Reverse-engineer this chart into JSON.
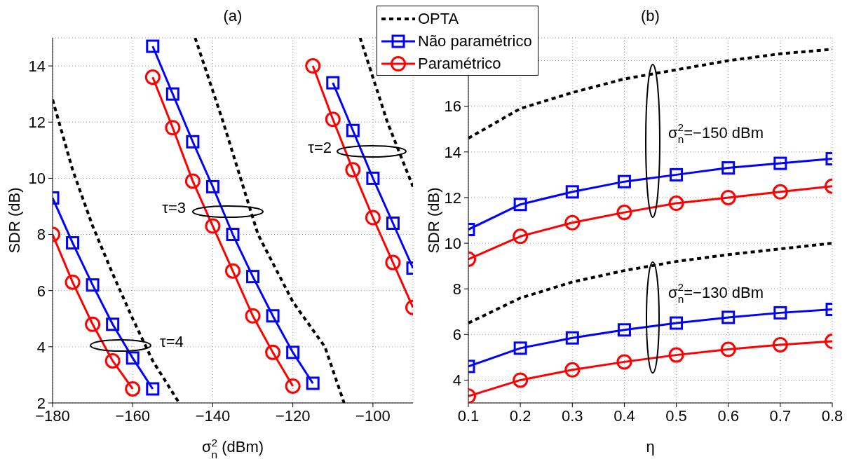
{
  "chart_data": [
    {
      "type": "line",
      "title": "(a)",
      "xlabel": "σ$^{2}$$_{n}$ (dBm)",
      "ylabel": "SDR (dB)",
      "xlim": [
        -180,
        -90
      ],
      "xticks": [
        -180,
        -160,
        -140,
        -120,
        -100
      ],
      "ylim": [
        2,
        15
      ],
      "yticks": [
        2,
        4,
        6,
        8,
        10,
        12,
        14
      ],
      "grid": true,
      "legend": "top right",
      "series": [
        {
          "name": "OPTA",
          "color": "#000000",
          "line_style": "dashed",
          "marker": "none",
          "x": [
            -180,
            -175,
            -170,
            -165,
            -160,
            -155,
            -148.4
          ],
          "values": [
            12.8,
            10.3,
            8.3,
            6.6,
            5.0,
            3.5,
            2
          ]
        },
        {
          "name": "Não paramétrico",
          "color": "#0000ff",
          "line_style": "solid",
          "marker": "square",
          "x": [
            -180,
            -175,
            -170,
            -165,
            -160,
            -155
          ],
          "values": [
            9.3,
            7.7,
            6.2,
            4.8,
            3.6,
            2.5
          ]
        },
        {
          "name": "Paramétrico",
          "color": "#ff0000",
          "line_style": "solid",
          "marker": "circle",
          "x": [
            -180,
            -175,
            -170,
            -165,
            -160
          ],
          "values": [
            8.0,
            6.3,
            4.8,
            3.5,
            2.5
          ]
        },
        {
          "color": "#000000",
          "line_style": "dashed",
          "marker": "none",
          "x": [
            -144.4,
            -137.4,
            -128.7,
            -120,
            -112,
            -107.2
          ],
          "values": [
            15,
            12,
            8,
            5.6,
            4,
            2
          ]
        },
        {
          "color": "#0000ff",
          "line_style": "solid",
          "marker": "square",
          "x": [
            -155,
            -150,
            -145,
            -140,
            -135,
            -130,
            -125,
            -120,
            -115
          ],
          "values": [
            14.7,
            13.0,
            11.3,
            9.7,
            8.0,
            6.5,
            5.1,
            3.8,
            2.7
          ]
        },
        {
          "color": "#ff0000",
          "line_style": "solid",
          "marker": "circle",
          "x": [
            -155,
            -150,
            -145,
            -140,
            -135,
            -130,
            -125,
            -120
          ],
          "values": [
            13.6,
            11.8,
            9.9,
            8.3,
            6.7,
            5.1,
            3.8,
            2.6
          ]
        },
        {
          "color": "#000000",
          "line_style": "dashed",
          "marker": "none",
          "x": [
            -103.2,
            -96.4,
            -90
          ],
          "values": [
            15,
            12,
            9.7
          ]
        },
        {
          "color": "#0000ff",
          "line_style": "solid",
          "marker": "square",
          "x": [
            -110,
            -105,
            -100,
            -95,
            -90
          ],
          "values": [
            13.4,
            11.7,
            10.0,
            8.4,
            6.8
          ]
        },
        {
          "color": "#ff0000",
          "line_style": "solid",
          "marker": "circle",
          "x": [
            -115,
            -110,
            -105,
            -100,
            -95,
            -90
          ],
          "values": [
            14.0,
            12.1,
            10.3,
            8.6,
            7.0,
            5.4
          ]
        }
      ],
      "annotations": [
        "τ=4",
        "τ=3",
        "τ=2"
      ]
    },
    {
      "type": "line",
      "title": "(b)",
      "xlabel": "η",
      "ylabel": "SDR (dB)",
      "xlim": [
        0.1,
        0.8
      ],
      "xticks": [
        0.1,
        0.2,
        0.3,
        0.4,
        0.5,
        0.6,
        0.7,
        0.8
      ],
      "ylim": [
        3,
        19
      ],
      "yticks": [
        4,
        6,
        8,
        10,
        12,
        14,
        16,
        {
          "value": 18,
          "label": null
        }
      ],
      "grid": true,
      "series": [
        {
          "color": "#000000",
          "line_style": "dashed",
          "marker": "none",
          "x": [
            0.1,
            0.2,
            0.3,
            0.4,
            0.5,
            0.6,
            0.7,
            0.8
          ],
          "values": [
            14.6,
            15.9,
            16.6,
            17.2,
            17.6,
            18.0,
            18.3,
            18.5
          ]
        },
        {
          "color": "#0000ff",
          "line_style": "solid",
          "marker": "square",
          "x": [
            0.1,
            0.2,
            0.3,
            0.4,
            0.5,
            0.6,
            0.7,
            0.8
          ],
          "values": [
            10.6,
            11.7,
            12.25,
            12.7,
            13.0,
            13.3,
            13.5,
            13.7
          ]
        },
        {
          "color": "#ff0000",
          "line_style": "solid",
          "marker": "circle",
          "x": [
            0.1,
            0.2,
            0.3,
            0.4,
            0.5,
            0.6,
            0.7,
            0.8
          ],
          "values": [
            9.3,
            10.3,
            10.9,
            11.35,
            11.75,
            12.0,
            12.25,
            12.5
          ]
        },
        {
          "color": "#000000",
          "line_style": "dashed",
          "marker": "none",
          "x": [
            0.1,
            0.2,
            0.3,
            0.4,
            0.5,
            0.6,
            0.7,
            0.8
          ],
          "values": [
            6.5,
            7.6,
            8.3,
            8.8,
            9.2,
            9.5,
            9.75,
            10.0
          ]
        },
        {
          "color": "#0000ff",
          "line_style": "solid",
          "marker": "square",
          "x": [
            0.1,
            0.2,
            0.3,
            0.4,
            0.5,
            0.6,
            0.7,
            0.8
          ],
          "values": [
            4.6,
            5.4,
            5.85,
            6.2,
            6.5,
            6.75,
            6.95,
            7.1
          ]
        },
        {
          "color": "#ff0000",
          "line_style": "solid",
          "marker": "circle",
          "x": [
            0.1,
            0.2,
            0.3,
            0.4,
            0.5,
            0.6,
            0.7,
            0.8
          ],
          "values": [
            3.3,
            4.0,
            4.45,
            4.8,
            5.1,
            5.35,
            5.55,
            5.7
          ]
        }
      ],
      "annotations": [
        "σ$^{2}$$_{n}$=−150 dBm",
        "σ$^{2}$$_{n}$=−130 dBm"
      ]
    }
  ]
}
